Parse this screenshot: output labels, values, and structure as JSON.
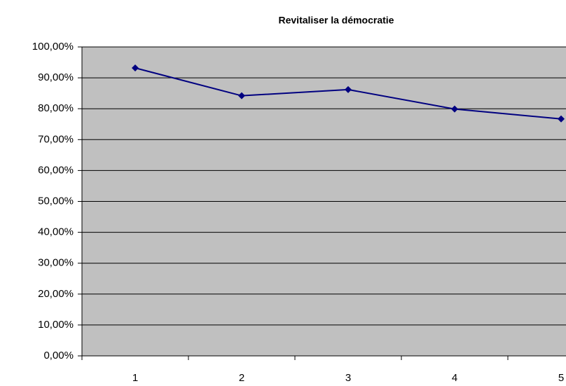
{
  "chart_data": {
    "type": "line",
    "title": "Revitaliser la démocratie",
    "categories": [
      "1",
      "2",
      "3",
      "4",
      "5"
    ],
    "series": [
      {
        "name": "Revitaliser la démocratie",
        "color": "#000080",
        "values": [
          93.2,
          84.2,
          86.2,
          79.9,
          76.7
        ]
      }
    ],
    "ylim": [
      0,
      100
    ],
    "yticks": [
      {
        "value": 0,
        "label": "0,00%"
      },
      {
        "value": 10,
        "label": "10,00%"
      },
      {
        "value": 20,
        "label": "20,00%"
      },
      {
        "value": 30,
        "label": "30,00%"
      },
      {
        "value": 40,
        "label": "40,00%"
      },
      {
        "value": 50,
        "label": "50,00%"
      },
      {
        "value": 60,
        "label": "60,00%"
      },
      {
        "value": 70,
        "label": "70,00%"
      },
      {
        "value": 80,
        "label": "80,00%"
      },
      {
        "value": 90,
        "label": "90,00%"
      },
      {
        "value": 100,
        "label": "100,00%"
      }
    ],
    "grid": true,
    "plot_background": "#c0c0c0"
  }
}
